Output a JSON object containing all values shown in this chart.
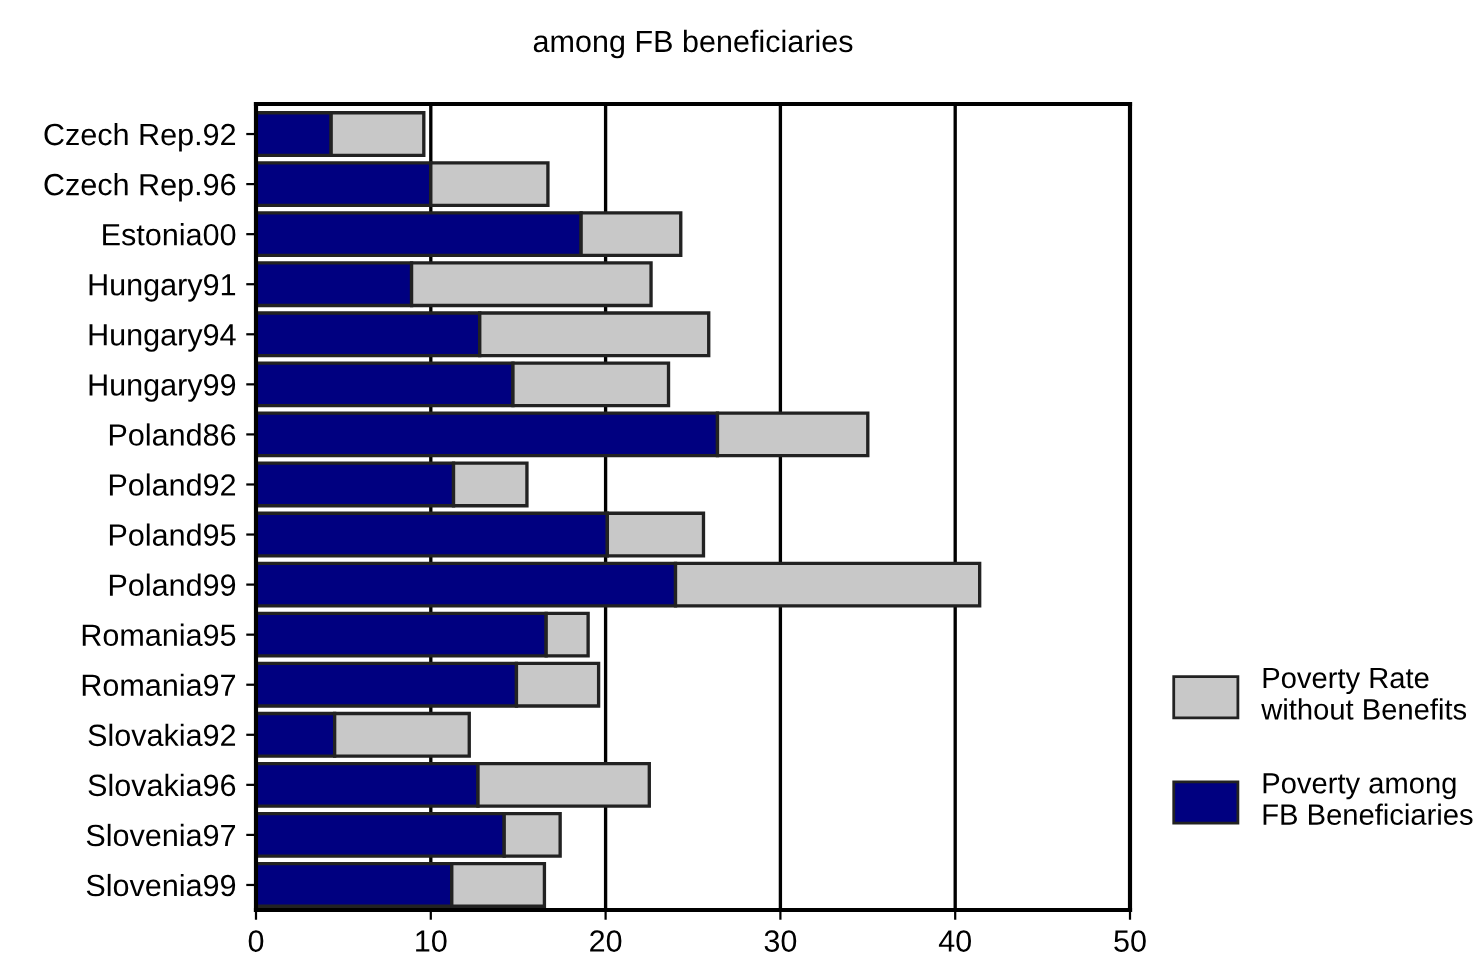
{
  "chart_data": {
    "type": "bar",
    "orientation": "horizontal",
    "stacked": true,
    "title": "among FB beneficiaries",
    "categories": [
      "Czech Rep.92",
      "Czech Rep.96",
      "Estonia00",
      "Hungary91",
      "Hungary94",
      "Hungary99",
      "Poland86",
      "Poland92",
      "Poland95",
      "Poland99",
      "Romania95",
      "Romania97",
      "Slovakia92",
      "Slovakia96",
      "Slovenia97",
      "Slovenia99"
    ],
    "series": [
      {
        "name": "Poverty among\nFB Beneficiaries",
        "color": "#000080",
        "values": [
          4.3,
          10.0,
          18.6,
          8.9,
          12.8,
          14.7,
          26.4,
          11.3,
          20.1,
          24.0,
          16.6,
          14.9,
          4.5,
          12.7,
          14.2,
          11.2
        ]
      },
      {
        "name": "Poverty Rate\nwithout Benefits",
        "color": "#c8c8c8",
        "values": [
          5.3,
          6.7,
          5.7,
          13.7,
          13.1,
          8.9,
          8.6,
          4.2,
          5.5,
          17.4,
          2.4,
          4.7,
          7.7,
          9.8,
          3.2,
          5.3
        ]
      }
    ],
    "xlim": [
      0,
      50
    ],
    "xticks": [
      0,
      10,
      20,
      30,
      40,
      50
    ],
    "grid": "x",
    "legend": "right"
  }
}
